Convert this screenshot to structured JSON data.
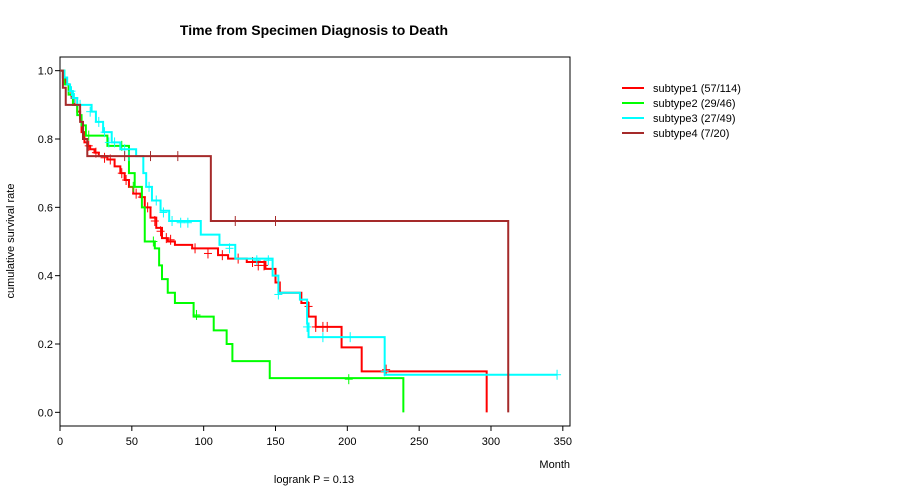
{
  "chart_data": {
    "type": "line",
    "title": "Time from Specimen Diagnosis to Death",
    "xlabel": "Month",
    "ylabel": "cumulative survival rate",
    "footnote": "logrank P = 0.13",
    "xlim": [
      0,
      355
    ],
    "ylim": [
      -0.04,
      1.04
    ],
    "xticks": [
      0,
      50,
      100,
      150,
      200,
      250,
      300,
      350
    ],
    "yticks": [
      0.0,
      0.2,
      0.4,
      0.6,
      0.8,
      1.0
    ],
    "ytick_labels": [
      "0.0",
      "0.2",
      "0.4",
      "0.6",
      "0.8",
      "1.0"
    ],
    "legend_position": "right",
    "series": [
      {
        "name": "subtype1 (57/114)",
        "color": "#ff0000",
        "steps": [
          [
            0,
            1.0
          ],
          [
            2,
            0.98
          ],
          [
            4,
            0.96
          ],
          [
            6,
            0.94
          ],
          [
            8,
            0.92
          ],
          [
            10,
            0.9
          ],
          [
            12,
            0.88
          ],
          [
            14,
            0.86
          ],
          [
            15,
            0.82
          ],
          [
            17,
            0.79
          ],
          [
            19,
            0.78
          ],
          [
            21,
            0.77
          ],
          [
            24,
            0.76
          ],
          [
            27,
            0.75
          ],
          [
            33,
            0.74
          ],
          [
            38,
            0.72
          ],
          [
            42,
            0.7
          ],
          [
            45,
            0.68
          ],
          [
            48,
            0.66
          ],
          [
            51,
            0.64
          ],
          [
            56,
            0.63
          ],
          [
            59,
            0.6
          ],
          [
            63,
            0.57
          ],
          [
            67,
            0.54
          ],
          [
            71,
            0.51
          ],
          [
            75,
            0.5
          ],
          [
            80,
            0.49
          ],
          [
            92,
            0.48
          ],
          [
            110,
            0.46
          ],
          [
            117,
            0.45
          ],
          [
            130,
            0.44
          ],
          [
            143,
            0.42
          ],
          [
            150,
            0.38
          ],
          [
            153,
            0.35
          ],
          [
            168,
            0.32
          ],
          [
            173,
            0.28
          ],
          [
            178,
            0.25
          ],
          [
            196,
            0.19
          ],
          [
            210,
            0.12
          ],
          [
            297,
            0.0
          ]
        ],
        "end": 297,
        "censors": [
          [
            20,
            0.78
          ],
          [
            25,
            0.76
          ],
          [
            31,
            0.745
          ],
          [
            35,
            0.74
          ],
          [
            43,
            0.7
          ],
          [
            46,
            0.68
          ],
          [
            53,
            0.64
          ],
          [
            57,
            0.63
          ],
          [
            61,
            0.6
          ],
          [
            66,
            0.56
          ],
          [
            70,
            0.53
          ],
          [
            74,
            0.51
          ],
          [
            77,
            0.505
          ],
          [
            94,
            0.48
          ],
          [
            103,
            0.465
          ],
          [
            113,
            0.46
          ],
          [
            124,
            0.45
          ],
          [
            134,
            0.44
          ],
          [
            138,
            0.43
          ],
          [
            142,
            0.43
          ],
          [
            173,
            0.31
          ],
          [
            178,
            0.25
          ],
          [
            183,
            0.25
          ],
          [
            186,
            0.25
          ],
          [
            227,
            0.125
          ]
        ]
      },
      {
        "name": "subtype2 (29/46)",
        "color": "#00ff00",
        "steps": [
          [
            0,
            1.0
          ],
          [
            3,
            0.96
          ],
          [
            6,
            0.93
          ],
          [
            9,
            0.9
          ],
          [
            12,
            0.87
          ],
          [
            15,
            0.84
          ],
          [
            18,
            0.81
          ],
          [
            33,
            0.78
          ],
          [
            48,
            0.7
          ],
          [
            52,
            0.66
          ],
          [
            57,
            0.6
          ],
          [
            59,
            0.5
          ],
          [
            66,
            0.48
          ],
          [
            69,
            0.43
          ],
          [
            71,
            0.39
          ],
          [
            75,
            0.35
          ],
          [
            80,
            0.32
          ],
          [
            93,
            0.28
          ],
          [
            107,
            0.24
          ],
          [
            116,
            0.2
          ],
          [
            120,
            0.15
          ],
          [
            146,
            0.1
          ],
          [
            239,
            0.0
          ]
        ],
        "end": 239,
        "censors": [
          [
            20,
            0.81
          ],
          [
            43,
            0.78
          ],
          [
            51,
            0.66
          ],
          [
            65,
            0.5
          ],
          [
            95,
            0.285
          ],
          [
            201,
            0.097
          ]
        ]
      },
      {
        "name": "subtype3 (27/49)",
        "color": "#00ffff",
        "steps": [
          [
            0,
            1.0
          ],
          [
            3,
            0.98
          ],
          [
            5,
            0.96
          ],
          [
            7,
            0.94
          ],
          [
            9,
            0.92
          ],
          [
            12,
            0.9
          ],
          [
            22,
            0.88
          ],
          [
            25,
            0.85
          ],
          [
            30,
            0.82
          ],
          [
            36,
            0.79
          ],
          [
            42,
            0.77
          ],
          [
            53,
            0.75
          ],
          [
            58,
            0.7
          ],
          [
            60,
            0.66
          ],
          [
            64,
            0.62
          ],
          [
            70,
            0.59
          ],
          [
            76,
            0.56
          ],
          [
            98,
            0.52
          ],
          [
            111,
            0.49
          ],
          [
            122,
            0.45
          ],
          [
            148,
            0.4
          ],
          [
            152,
            0.35
          ],
          [
            167,
            0.33
          ],
          [
            172,
            0.26
          ],
          [
            173,
            0.22
          ],
          [
            226,
            0.11
          ],
          [
            346,
            0.11
          ]
        ],
        "end": 346,
        "censors": [
          [
            8,
            0.94
          ],
          [
            10,
            0.92
          ],
          [
            14,
            0.9
          ],
          [
            21,
            0.88
          ],
          [
            27,
            0.85
          ],
          [
            31,
            0.82
          ],
          [
            34,
            0.79
          ],
          [
            38,
            0.79
          ],
          [
            45,
            0.77
          ],
          [
            48,
            0.75
          ],
          [
            62,
            0.66
          ],
          [
            67,
            0.62
          ],
          [
            72,
            0.585
          ],
          [
            78,
            0.56
          ],
          [
            84,
            0.555
          ],
          [
            89,
            0.555
          ],
          [
            118,
            0.48
          ],
          [
            137,
            0.445
          ],
          [
            145,
            0.445
          ],
          [
            152,
            0.345
          ],
          [
            172,
            0.25
          ],
          [
            183,
            0.22
          ],
          [
            202,
            0.22
          ],
          [
            226,
            0.12
          ],
          [
            346,
            0.11
          ]
        ]
      },
      {
        "name": "subtype4 (7/20)",
        "color": "#a52a2a",
        "steps": [
          [
            0,
            1.0
          ],
          [
            2,
            0.95
          ],
          [
            4,
            0.9
          ],
          [
            14,
            0.85
          ],
          [
            16,
            0.8
          ],
          [
            19,
            0.75
          ],
          [
            105,
            0.56
          ],
          [
            312,
            0.0
          ]
        ],
        "end": 312,
        "censors": [
          [
            45,
            0.75
          ],
          [
            63,
            0.75
          ],
          [
            82,
            0.75
          ],
          [
            122,
            0.56
          ],
          [
            150,
            0.56
          ]
        ]
      }
    ]
  }
}
